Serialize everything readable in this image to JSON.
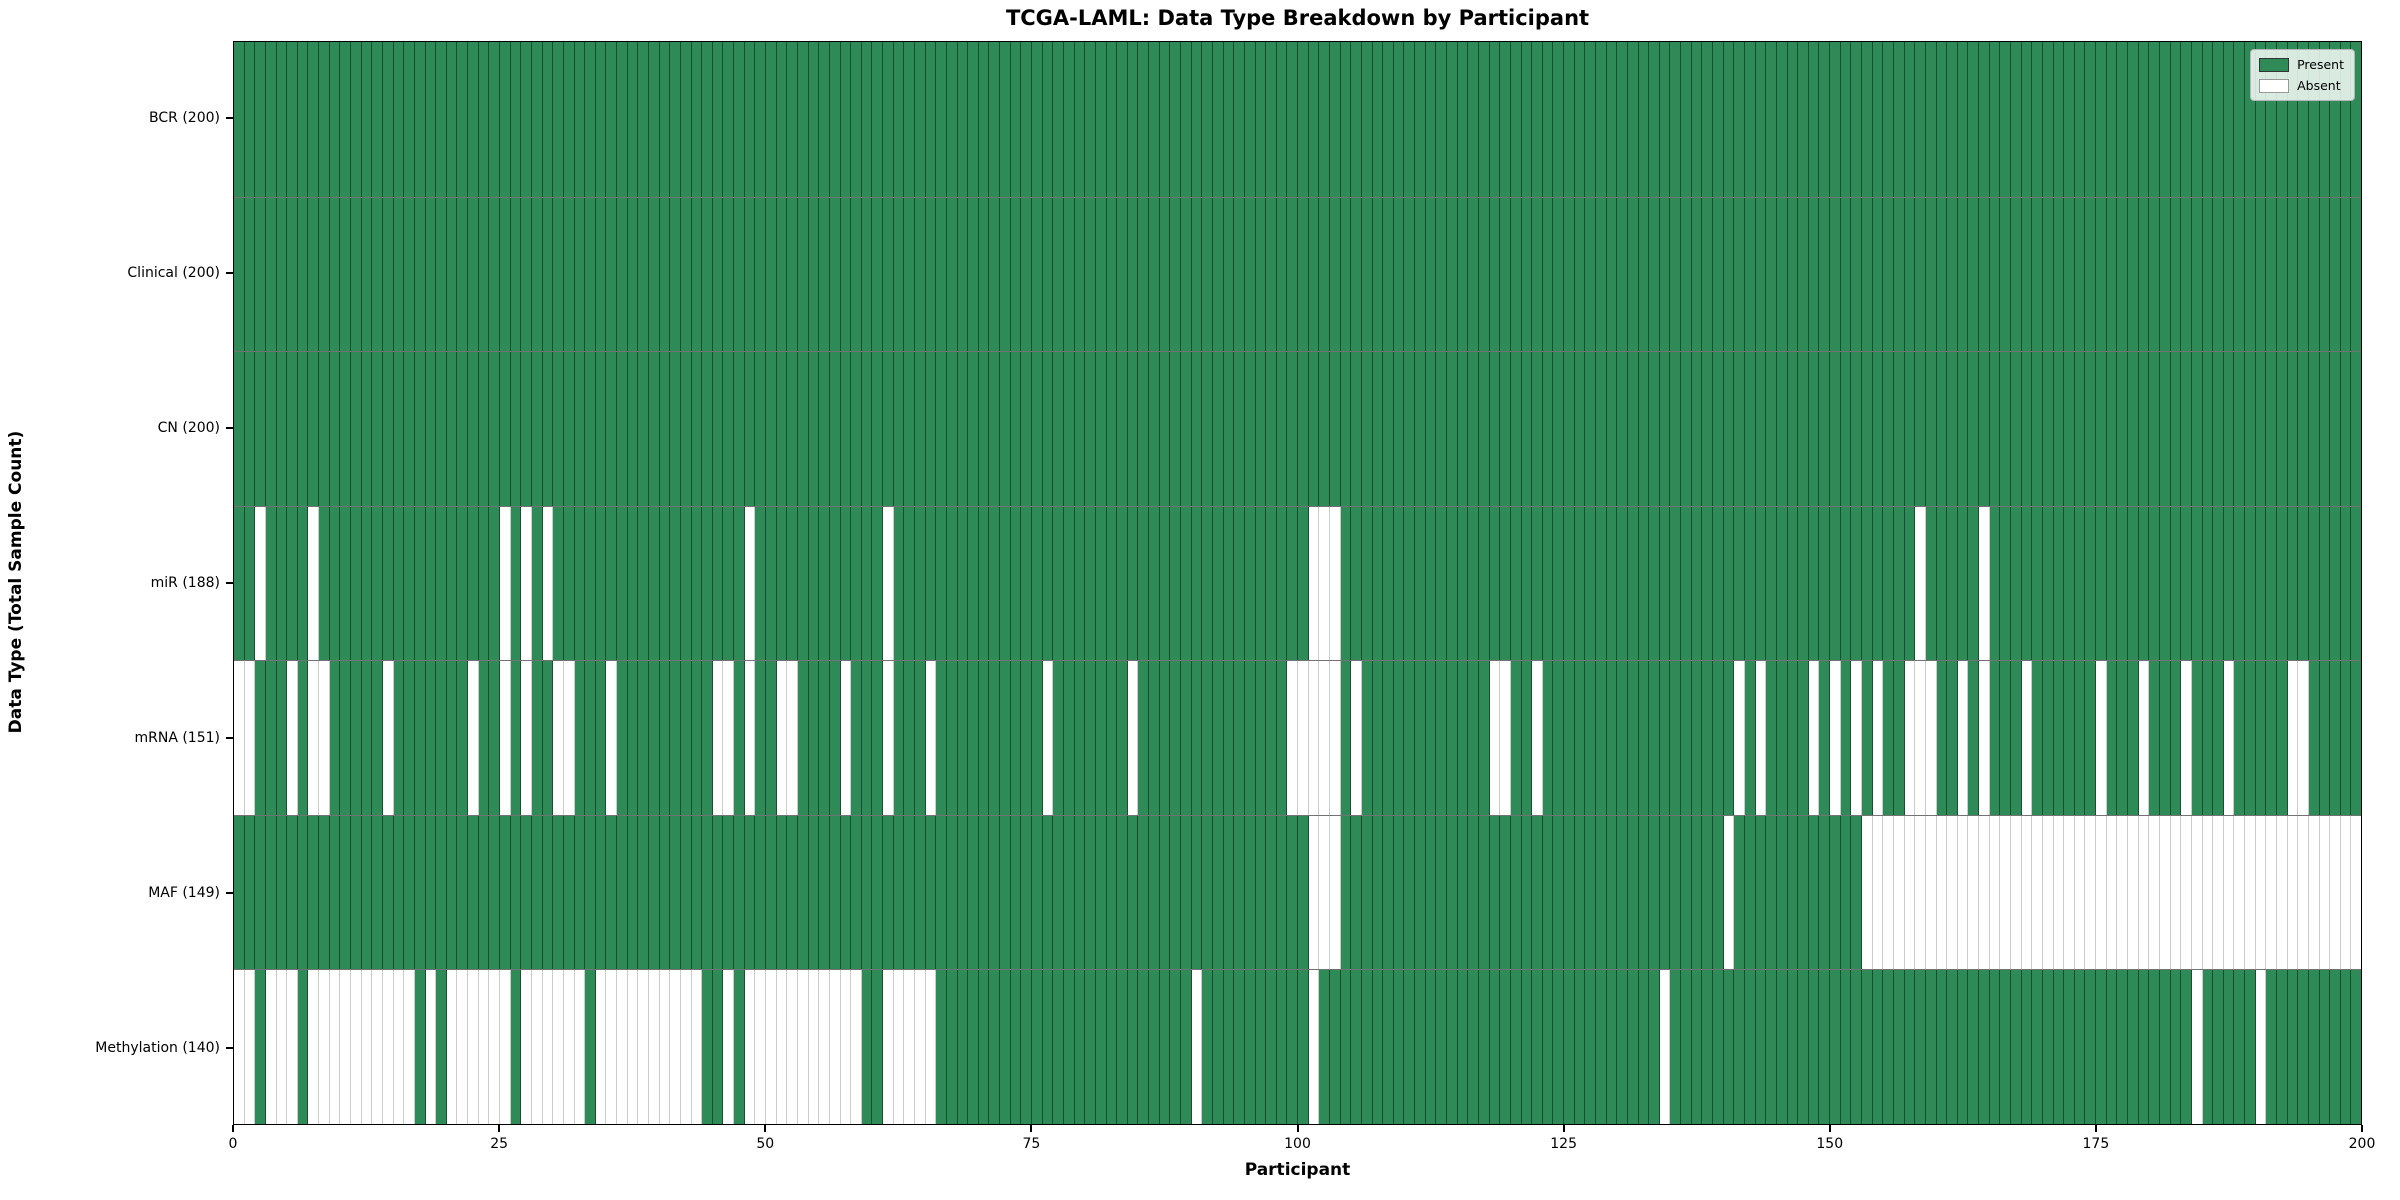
{
  "title": "TCGA-LAML: Data Type Breakdown by Participant",
  "xlabel": "Participant",
  "ylabel": "Data Type (Total Sample Count)",
  "legend": {
    "present_label": "Present",
    "absent_label": "Absent"
  },
  "colors": {
    "present": "#2e8b57",
    "absent": "#ffffff"
  },
  "chart_data": {
    "type": "heatmap",
    "title": "TCGA-LAML: Data Type Breakdown by Participant",
    "xlabel": "Participant",
    "ylabel": "Data Type (Total Sample Count)",
    "x_range": [
      0,
      200
    ],
    "n_participants": 200,
    "x_ticks": [
      0,
      25,
      50,
      75,
      100,
      125,
      150,
      175,
      200
    ],
    "legend_entries": [
      "Present",
      "Absent"
    ],
    "legend_position": "upper right",
    "grid": false,
    "rows": [
      {
        "label": "BCR (200)",
        "data_type": "BCR",
        "present_count": 200,
        "absent_participants": []
      },
      {
        "label": "Clinical (200)",
        "data_type": "Clinical",
        "present_count": 200,
        "absent_participants": []
      },
      {
        "label": "CN (200)",
        "data_type": "CN",
        "present_count": 200,
        "absent_participants": []
      },
      {
        "label": "miR (188)",
        "data_type": "miR",
        "present_count": 188,
        "absent_participants": [
          2,
          7,
          25,
          27,
          29,
          48,
          61,
          101,
          102,
          103,
          158,
          164
        ]
      },
      {
        "label": "mRNA (151)",
        "data_type": "mRNA",
        "present_count": 151,
        "absent_participants": [
          0,
          1,
          5,
          7,
          8,
          14,
          22,
          25,
          27,
          30,
          31,
          35,
          45,
          46,
          48,
          51,
          52,
          57,
          61,
          65,
          76,
          84,
          99,
          100,
          101,
          102,
          103,
          105,
          118,
          119,
          122,
          141,
          143,
          148,
          150,
          152,
          154,
          157,
          158,
          159,
          162,
          164,
          168,
          175,
          179,
          183,
          187,
          193,
          194
        ]
      },
      {
        "label": "MAF (149)",
        "data_type": "MAF",
        "present_count": 149,
        "absent_participants": [
          101,
          102,
          103,
          140,
          153,
          154,
          155,
          156,
          157,
          158,
          159,
          160,
          161,
          162,
          163,
          164,
          165,
          166,
          167,
          168,
          169,
          170,
          171,
          172,
          173,
          174,
          175,
          176,
          177,
          178,
          179,
          180,
          181,
          182,
          183,
          184,
          185,
          186,
          187,
          188,
          189,
          190,
          191,
          192,
          193,
          194,
          195,
          196,
          197,
          198,
          199
        ]
      },
      {
        "label": "Methylation (140)",
        "data_type": "Methylation",
        "present_count": 140,
        "absent_participants": [
          0,
          1,
          3,
          4,
          5,
          7,
          8,
          9,
          10,
          11,
          12,
          13,
          14,
          15,
          16,
          18,
          20,
          21,
          22,
          23,
          24,
          25,
          27,
          28,
          29,
          30,
          31,
          32,
          34,
          35,
          36,
          37,
          38,
          39,
          40,
          41,
          42,
          43,
          46,
          48,
          49,
          50,
          51,
          52,
          53,
          54,
          55,
          56,
          57,
          58,
          61,
          62,
          63,
          64,
          65,
          90,
          101,
          134,
          184,
          190
        ]
      }
    ]
  }
}
